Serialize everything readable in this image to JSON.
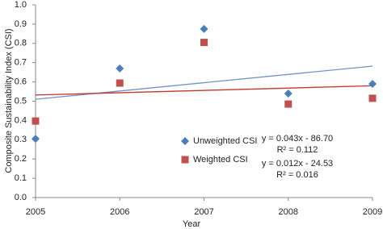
{
  "chart_data": {
    "type": "scatter",
    "x_label": "Year",
    "y_label": "Composite Sustainability Index (CSI)",
    "x": [
      2005,
      2006,
      2007,
      2008,
      2009
    ],
    "series": [
      {
        "name": "Unweighted CSI",
        "color": "#4a7ebb",
        "marker": "diamond",
        "values": [
          0.305,
          0.67,
          0.875,
          0.54,
          0.59
        ],
        "trend_color": "#6f93cc",
        "trend_values": [
          0.51,
          0.682
        ]
      },
      {
        "name": "Weighted CSI",
        "color": "#c0504d",
        "marker": "square",
        "values": [
          0.397,
          0.594,
          0.805,
          0.485,
          0.515
        ],
        "trend_color": "#c0392b",
        "trend_values": [
          0.532,
          0.58
        ]
      }
    ],
    "annotations": [
      "y = 0.043x - 86.70",
      "R² = 0.112",
      "y = 0.012x - 24.53",
      "R² = 0.016"
    ],
    "xlim": [
      2005,
      2009
    ],
    "xticks": [
      2005,
      2006,
      2007,
      2008,
      2009
    ],
    "ylim": [
      0,
      1
    ],
    "yticks": [
      {
        "value": 0,
        "label": "0.0"
      },
      0.1,
      0.2,
      0.3,
      0.4,
      0.5,
      0.6,
      0.7,
      0.8,
      0.9,
      {
        "value": 1,
        "label": "1.0"
      }
    ],
    "grid": false
  }
}
